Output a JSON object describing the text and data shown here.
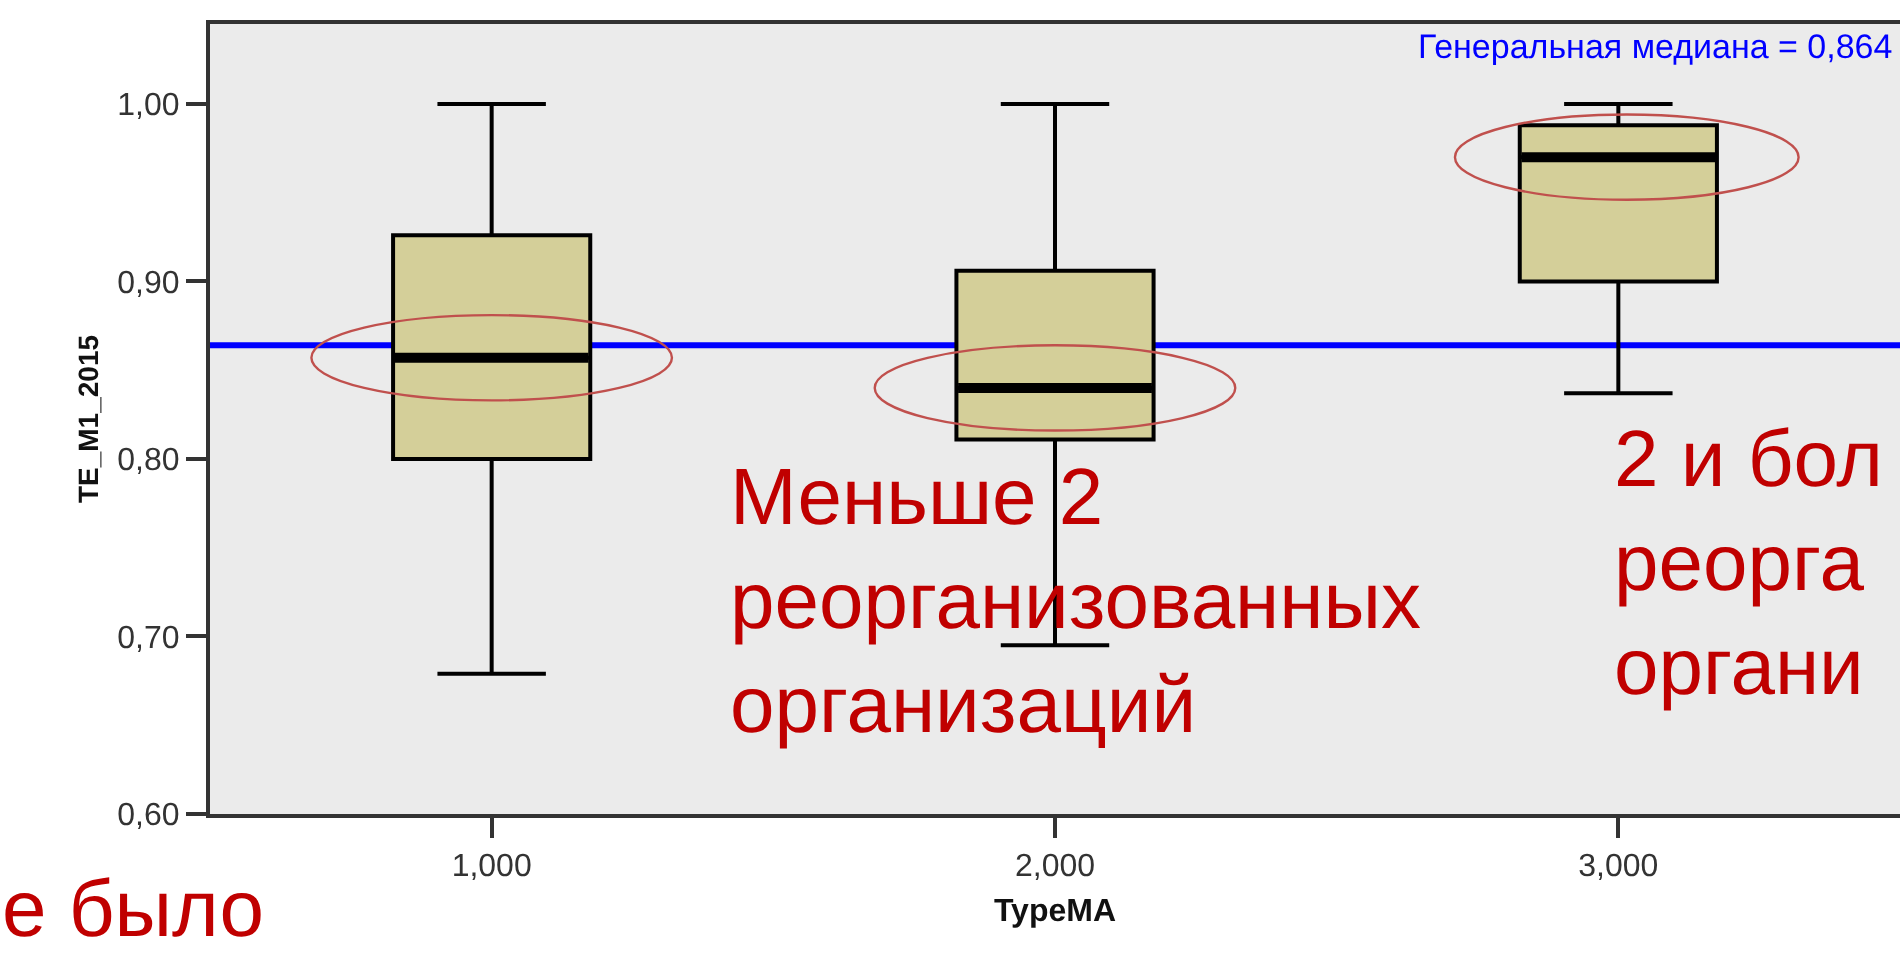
{
  "chart_data": {
    "type": "box",
    "xlabel": "TypeMA",
    "ylabel": "TE_M1_2015",
    "categories": [
      "1,000",
      "2,000",
      "3,000"
    ],
    "series": [
      {
        "color": "#d4cf99",
        "boxes": [
          {
            "low": 0.679,
            "q1": 0.8,
            "median": 0.857,
            "q3": 0.926,
            "high": 1.0
          },
          {
            "low": 0.695,
            "q1": 0.811,
            "median": 0.84,
            "q3": 0.906,
            "high": 1.0
          },
          {
            "low": 0.837,
            "q1": 0.9,
            "median": 0.97,
            "q3": 0.988,
            "high": 1.0
          }
        ]
      }
    ],
    "ylim": [
      0.6,
      1.045
    ],
    "yticks": [
      {
        "value": 0.6,
        "label": "0,60"
      },
      {
        "value": 0.7,
        "label": "0,70"
      },
      {
        "value": 0.8,
        "label": "0,80"
      },
      {
        "value": 0.9,
        "label": "0,90"
      },
      {
        "value": 1.0,
        "label": "1,00"
      }
    ],
    "ref_lines": [
      {
        "axis": "y",
        "value": 0.864,
        "label": "Генеральная медиана = 0,864",
        "color": "#0000ff"
      }
    ],
    "annotations": [
      "Меньше 2\nреорганизованных\nорганизаций",
      "2 и бол\nреорга\nоргани",
      "е было"
    ],
    "grid": false
  }
}
